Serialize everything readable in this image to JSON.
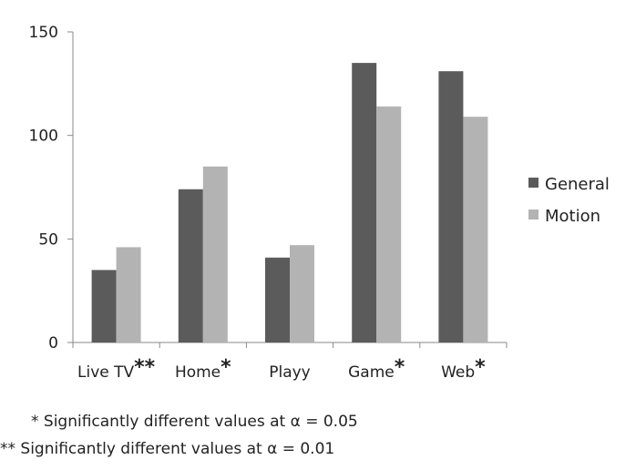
{
  "chart_data": {
    "type": "bar",
    "categories": [
      "Live TV",
      "Home",
      "Playy",
      "Game",
      "Web"
    ],
    "significance": [
      "**",
      "*",
      "",
      "*",
      "*"
    ],
    "series": [
      {
        "name": "General",
        "color": "#5b5b5b",
        "values": [
          35,
          74,
          41,
          135,
          131
        ]
      },
      {
        "name": "Motion",
        "color": "#b3b3b3",
        "values": [
          46,
          85,
          47,
          114,
          109
        ]
      }
    ],
    "ylim": [
      0,
      150
    ],
    "yticks": [
      0,
      50,
      100,
      150
    ],
    "grid": false,
    "legend_position": "right",
    "xlabel": "",
    "ylabel": "",
    "title": ""
  },
  "footnotes": [
    "* Significantly different values at α = 0.05",
    "** Significantly different values at α = 0.01"
  ]
}
